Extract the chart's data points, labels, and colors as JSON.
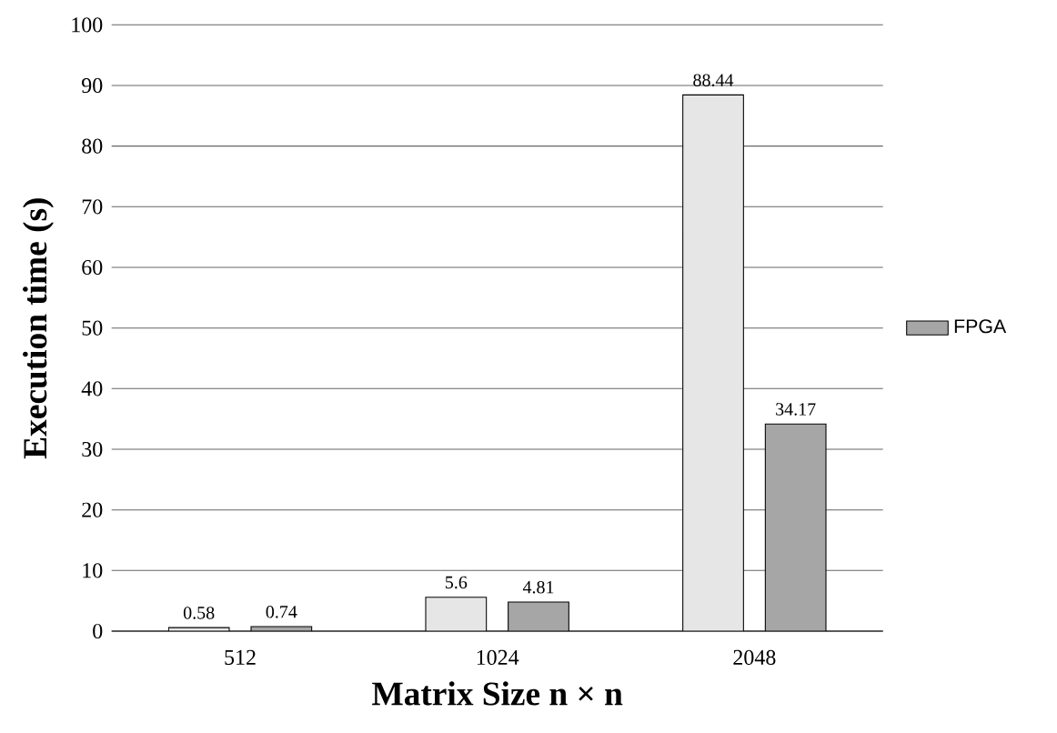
{
  "chart_data": {
    "type": "bar",
    "xlabel": "Matrix Size n × n",
    "ylabel": "Execution time (s)",
    "categories": [
      "512",
      "1024",
      "2048"
    ],
    "series": [
      {
        "color": "#e6e6e6",
        "values": [
          0.58,
          5.6,
          88.44
        ]
      },
      {
        "name": "FPGA",
        "color": "#a6a6a6",
        "values": [
          0.74,
          4.81,
          34.17
        ]
      }
    ],
    "ylim": [
      0,
      100
    ],
    "yticks": [
      0,
      10,
      20,
      30,
      40,
      50,
      60,
      70,
      80,
      90,
      100
    ],
    "grid": "y",
    "legend": "right",
    "data_labels": true
  }
}
